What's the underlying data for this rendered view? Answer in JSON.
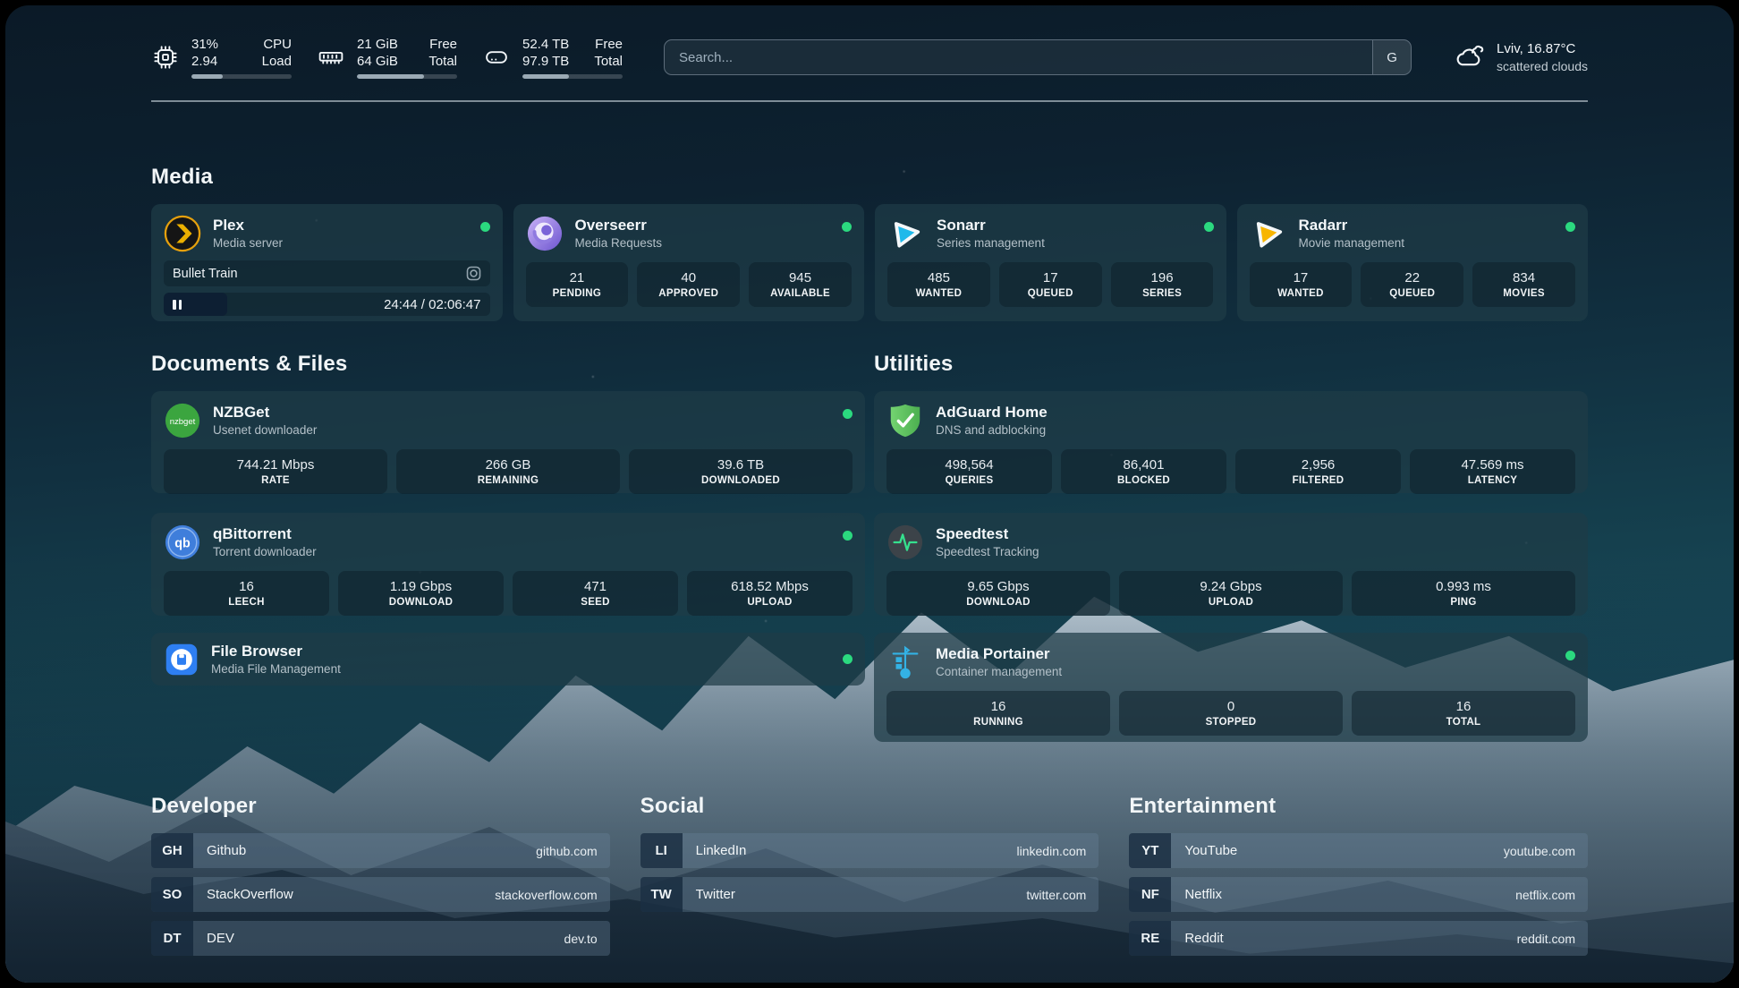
{
  "topbar": {
    "cpu": {
      "value_primary": "31%",
      "label_primary": "CPU",
      "value_secondary": "2.94",
      "label_secondary": "Load",
      "progress": 31
    },
    "memory": {
      "value_primary": "21 GiB",
      "label_primary": "Free",
      "value_secondary": "64 GiB",
      "label_secondary": "Total",
      "progress": 67
    },
    "disk": {
      "value_primary": "52.4 TB",
      "label_primary": "Free",
      "value_secondary": "97.9 TB",
      "label_secondary": "Total",
      "progress": 46
    },
    "search": {
      "placeholder": "Search...",
      "engine_label": "G"
    },
    "weather": {
      "location_temp": "Lviv, 16.87°C",
      "condition": "scattered clouds"
    }
  },
  "media": {
    "title": "Media",
    "plex": {
      "title": "Plex",
      "subtitle": "Media server",
      "now_playing": "Bullet Train",
      "time_display": "24:44 / 02:06:47",
      "progress_pct": 19.5
    },
    "overseerr": {
      "title": "Overseerr",
      "subtitle": "Media Requests",
      "stats": [
        {
          "value": "21",
          "label": "PENDING"
        },
        {
          "value": "40",
          "label": "APPROVED"
        },
        {
          "value": "945",
          "label": "AVAILABLE"
        }
      ]
    },
    "sonarr": {
      "title": "Sonarr",
      "subtitle": "Series management",
      "stats": [
        {
          "value": "485",
          "label": "WANTED"
        },
        {
          "value": "17",
          "label": "QUEUED"
        },
        {
          "value": "196",
          "label": "SERIES"
        }
      ]
    },
    "radarr": {
      "title": "Radarr",
      "subtitle": "Movie management",
      "stats": [
        {
          "value": "17",
          "label": "WANTED"
        },
        {
          "value": "22",
          "label": "QUEUED"
        },
        {
          "value": "834",
          "label": "MOVIES"
        }
      ]
    }
  },
  "documents": {
    "title": "Documents & Files",
    "nzbget": {
      "title": "NZBGet",
      "subtitle": "Usenet downloader",
      "stats": [
        {
          "value": "744.21 Mbps",
          "label": "RATE"
        },
        {
          "value": "266 GB",
          "label": "REMAINING"
        },
        {
          "value": "39.6 TB",
          "label": "DOWNLOADED"
        }
      ]
    },
    "qbittorrent": {
      "title": "qBittorrent",
      "subtitle": "Torrent downloader",
      "stats": [
        {
          "value": "16",
          "label": "LEECH"
        },
        {
          "value": "1.19 Gbps",
          "label": "DOWNLOAD"
        },
        {
          "value": "471",
          "label": "SEED"
        },
        {
          "value": "618.52 Mbps",
          "label": "UPLOAD"
        }
      ]
    },
    "filebrowser": {
      "title": "File Browser",
      "subtitle": "Media File Management"
    }
  },
  "utilities": {
    "title": "Utilities",
    "adguard": {
      "title": "AdGuard Home",
      "subtitle": "DNS and adblocking",
      "stats": [
        {
          "value": "498,564",
          "label": "QUERIES"
        },
        {
          "value": "86,401",
          "label": "BLOCKED"
        },
        {
          "value": "2,956",
          "label": "FILTERED"
        },
        {
          "value": "47.569 ms",
          "label": "LATENCY"
        }
      ]
    },
    "speedtest": {
      "title": "Speedtest",
      "subtitle": "Speedtest Tracking",
      "stats": [
        {
          "value": "9.65 Gbps",
          "label": "DOWNLOAD"
        },
        {
          "value": "9.24 Gbps",
          "label": "UPLOAD"
        },
        {
          "value": "0.993 ms",
          "label": "PING"
        }
      ]
    },
    "portainer": {
      "title": "Media Portainer",
      "subtitle": "Container management",
      "stats": [
        {
          "value": "16",
          "label": "RUNNING"
        },
        {
          "value": "0",
          "label": "STOPPED"
        },
        {
          "value": "16",
          "label": "TOTAL"
        }
      ]
    }
  },
  "bookmarks": {
    "developer": {
      "title": "Developer",
      "items": [
        {
          "abbr": "GH",
          "name": "Github",
          "url": "github.com"
        },
        {
          "abbr": "SO",
          "name": "StackOverflow",
          "url": "stackoverflow.com"
        },
        {
          "abbr": "DT",
          "name": "DEV",
          "url": "dev.to"
        }
      ]
    },
    "social": {
      "title": "Social",
      "items": [
        {
          "abbr": "LI",
          "name": "LinkedIn",
          "url": "linkedin.com"
        },
        {
          "abbr": "TW",
          "name": "Twitter",
          "url": "twitter.com"
        }
      ]
    },
    "entertainment": {
      "title": "Entertainment",
      "items": [
        {
          "abbr": "YT",
          "name": "YouTube",
          "url": "youtube.com"
        },
        {
          "abbr": "NF",
          "name": "Netflix",
          "url": "netflix.com"
        },
        {
          "abbr": "RE",
          "name": "Reddit",
          "url": "reddit.com"
        }
      ]
    }
  },
  "colors": {
    "status_online": "#2bd97f",
    "plex_accent": "#e5a00d",
    "sonarr_accent": "#1fb9ea",
    "radarr_accent": "#f7b500",
    "adguard_accent": "#5fc95c",
    "portainer_accent": "#33b2e5"
  }
}
